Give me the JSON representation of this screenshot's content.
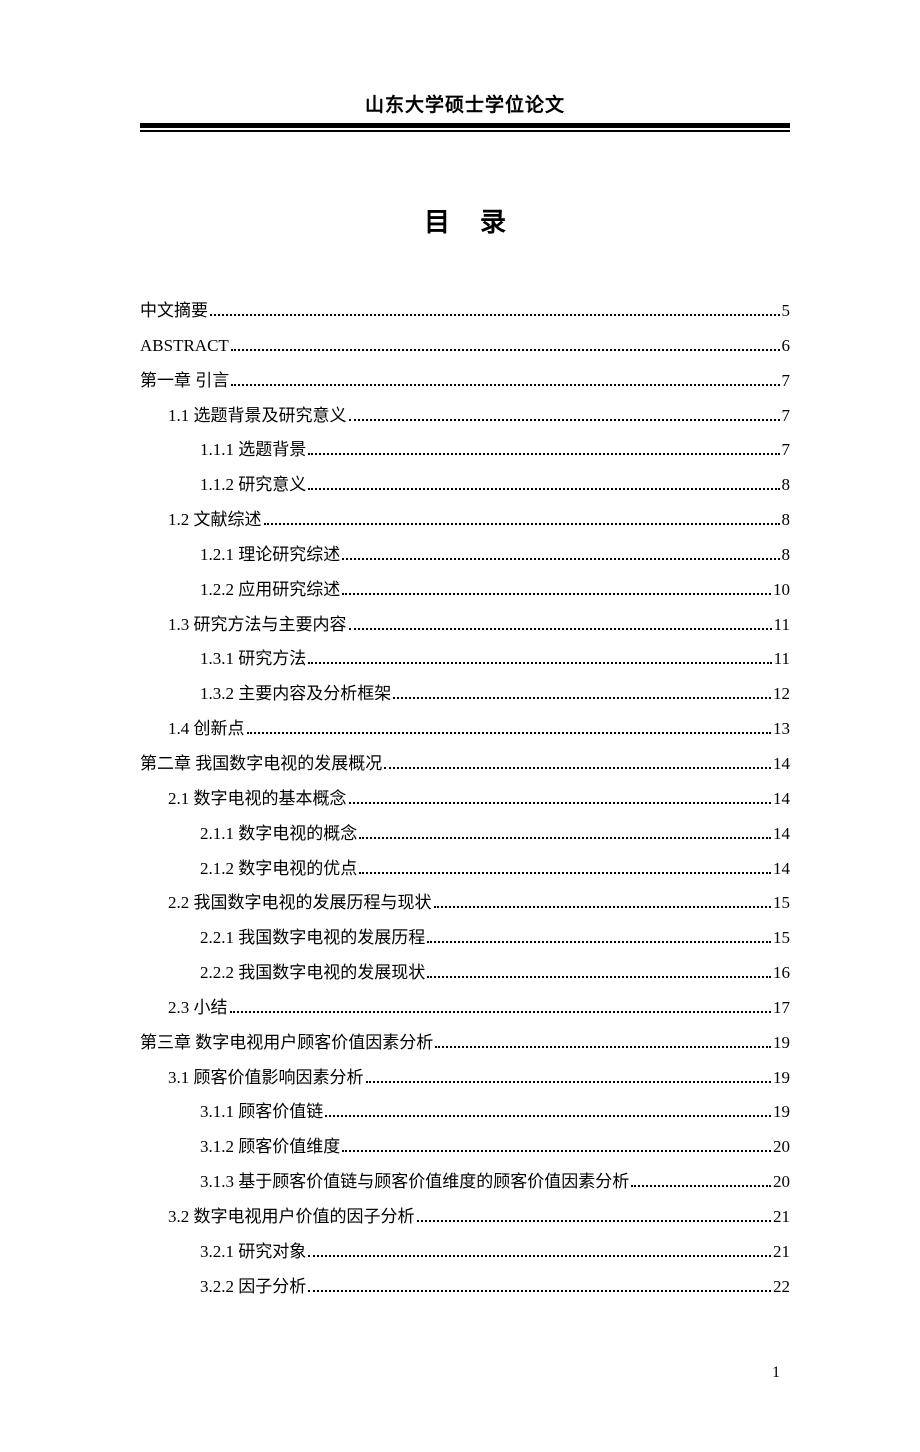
{
  "header": "山东大学硕士学位论文",
  "title": "目录",
  "page_number": "1",
  "toc": [
    {
      "label": "中文摘要",
      "page": "5",
      "indent": 0,
      "bold": false
    },
    {
      "label": "ABSTRACT",
      "page": "6",
      "indent": 0,
      "bold": false
    },
    {
      "label": "第一章  引言",
      "page": "7",
      "indent": 0,
      "bold": false
    },
    {
      "label": "1.1 选题背景及研究意义",
      "page": "7",
      "indent": 1,
      "bold": false
    },
    {
      "label": "1.1.1 选题背景",
      "page": "7",
      "indent": 2,
      "bold": false
    },
    {
      "label": "1.1.2 研究意义",
      "page": "8",
      "indent": 2,
      "bold": false
    },
    {
      "label": "1.2 文献综述",
      "page": "8",
      "indent": 1,
      "bold": false
    },
    {
      "label": "1.2.1 理论研究综述",
      "page": "8",
      "indent": 2,
      "bold": false
    },
    {
      "label": "1.2.2 应用研究综述",
      "page": "10",
      "indent": 2,
      "bold": false
    },
    {
      "label": "1.3 研究方法与主要内容",
      "page": "11",
      "indent": 1,
      "bold": false
    },
    {
      "label": "1.3.1 研究方法",
      "page": "11",
      "indent": 2,
      "bold": false
    },
    {
      "label": "1.3.2 主要内容及分析框架",
      "page": "12",
      "indent": 2,
      "bold": false
    },
    {
      "label": "1.4 创新点",
      "page": "13",
      "indent": 1,
      "bold": false
    },
    {
      "label": "第二章 我国数字电视的发展概况",
      "page": "14",
      "indent": 0,
      "bold": false
    },
    {
      "label": "2.1 数字电视的基本概念",
      "page": "14",
      "indent": 1,
      "bold": false
    },
    {
      "label": "2.1.1 数字电视的概念",
      "page": "14",
      "indent": 2,
      "bold": false
    },
    {
      "label": "2.1.2 数字电视的优点",
      "page": "14",
      "indent": 2,
      "bold": false
    },
    {
      "label": "2.2 我国数字电视的发展历程与现状",
      "page": "15",
      "indent": 1,
      "bold": false
    },
    {
      "label": "2.2.1 我国数字电视的发展历程",
      "page": "15",
      "indent": 2,
      "bold": false
    },
    {
      "label": "2.2.2 我国数字电视的发展现状",
      "page": "16",
      "indent": 2,
      "bold": false
    },
    {
      "label": "2.3 小结",
      "page": "17",
      "indent": 1,
      "bold": false
    },
    {
      "label": "第三章 数字电视用户顾客价值因素分析",
      "page": "19",
      "indent": 0,
      "bold": false
    },
    {
      "label": "3.1 顾客价值影响因素分析",
      "page": "19",
      "indent": 1,
      "bold": false
    },
    {
      "label": "3.1.1 顾客价值链",
      "page": "19",
      "indent": 2,
      "bold": false
    },
    {
      "label": "3.1.2 顾客价值维度",
      "page": "20",
      "indent": 2,
      "bold": false
    },
    {
      "label": "3.1.3 基于顾客价值链与顾客价值维度的顾客价值因素分析",
      "page": "20",
      "indent": 2,
      "bold": false
    },
    {
      "label": "3.2 数字电视用户价值的因子分析",
      "page": "21",
      "indent": 1,
      "bold": false
    },
    {
      "label": "3.2.1 研究对象",
      "page": "21",
      "indent": 2,
      "bold": false
    },
    {
      "label": "3.2.2 因子分析",
      "page": "22",
      "indent": 2,
      "bold": false
    }
  ],
  "style": {
    "text_color": "#000000",
    "background_color": "#ffffff",
    "body_fontsize": 17,
    "title_fontsize": 26,
    "header_fontsize": 19,
    "line_height": 2.05
  }
}
